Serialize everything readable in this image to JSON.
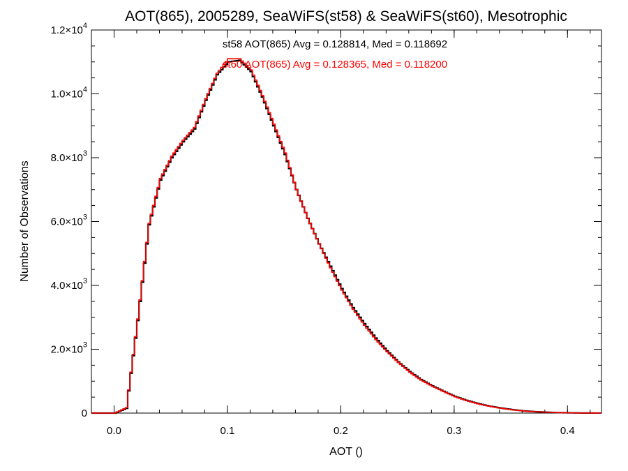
{
  "chart_data": {
    "type": "histogram",
    "title": "AOT(865), 2005289, SeaWiFS(st58) & SeaWiFS(st60), Mesotrophic",
    "xlabel": "AOT ()",
    "ylabel": "Number of Observations",
    "xlim": [
      -0.02,
      0.43
    ],
    "ylim": [
      0,
      12000
    ],
    "x_ticks": [
      0.0,
      0.1,
      0.2,
      0.3,
      0.4
    ],
    "x_tick_labels": [
      "0.0",
      "0.1",
      "0.2",
      "0.3",
      "0.4"
    ],
    "y_ticks": [
      0,
      2000,
      4000,
      6000,
      8000,
      10000,
      12000
    ],
    "y_tick_labels": [
      {
        "mantissa": "0",
        "exponent": ""
      },
      {
        "mantissa": "2.0×10",
        "exponent": "3"
      },
      {
        "mantissa": "4.0×10",
        "exponent": "3"
      },
      {
        "mantissa": "6.0×10",
        "exponent": "3"
      },
      {
        "mantissa": "8.0×10",
        "exponent": "3"
      },
      {
        "mantissa": "1.0×10",
        "exponent": "4"
      },
      {
        "mantissa": "1.2×10",
        "exponent": "4"
      }
    ],
    "grid": false,
    "series": [
      {
        "name": "st58",
        "color": "#000000",
        "annotation": "st58 AOT(865) Avg = 0.128814, Med = 0.118692",
        "x": [
          -0.02,
          0.0,
          0.01,
          0.02,
          0.03,
          0.04,
          0.05,
          0.06,
          0.07,
          0.08,
          0.09,
          0.1,
          0.11,
          0.12,
          0.13,
          0.14,
          0.15,
          0.16,
          0.17,
          0.18,
          0.19,
          0.2,
          0.21,
          0.22,
          0.23,
          0.24,
          0.25,
          0.26,
          0.27,
          0.28,
          0.29,
          0.3,
          0.31,
          0.32,
          0.33,
          0.34,
          0.35,
          0.36,
          0.37,
          0.38,
          0.39,
          0.4,
          0.41,
          0.42,
          0.43
        ],
        "y": [
          0,
          0,
          150,
          2900,
          5900,
          7300,
          8000,
          8500,
          8900,
          9800,
          10600,
          11000,
          11050,
          10700,
          9900,
          9000,
          8100,
          7000,
          6100,
          5300,
          4600,
          3900,
          3300,
          2800,
          2350,
          1950,
          1600,
          1300,
          1050,
          850,
          680,
          520,
          400,
          300,
          220,
          160,
          110,
          70,
          45,
          28,
          15,
          8,
          4,
          2,
          1
        ]
      },
      {
        "name": "st60",
        "color": "#ff0000",
        "annotation": "st60 AOT(865) Avg = 0.128365, Med = 0.118200",
        "x": [
          -0.02,
          0.0,
          0.01,
          0.02,
          0.03,
          0.04,
          0.05,
          0.06,
          0.07,
          0.08,
          0.09,
          0.1,
          0.11,
          0.12,
          0.13,
          0.14,
          0.15,
          0.16,
          0.17,
          0.18,
          0.19,
          0.2,
          0.21,
          0.22,
          0.23,
          0.24,
          0.25,
          0.26,
          0.27,
          0.28,
          0.29,
          0.3,
          0.31,
          0.32,
          0.33,
          0.34,
          0.35,
          0.36,
          0.37,
          0.38,
          0.39,
          0.4,
          0.41,
          0.42,
          0.43
        ],
        "y": [
          0,
          0,
          170,
          2950,
          5950,
          7350,
          8050,
          8550,
          8950,
          9850,
          10650,
          11100,
          11100,
          10750,
          9950,
          9050,
          8150,
          7000,
          6100,
          5300,
          4550,
          3850,
          3250,
          2750,
          2300,
          1920,
          1580,
          1280,
          1030,
          840,
          670,
          510,
          390,
          290,
          215,
          155,
          105,
          68,
          44,
          27,
          14,
          8,
          4,
          2,
          1
        ]
      }
    ]
  }
}
